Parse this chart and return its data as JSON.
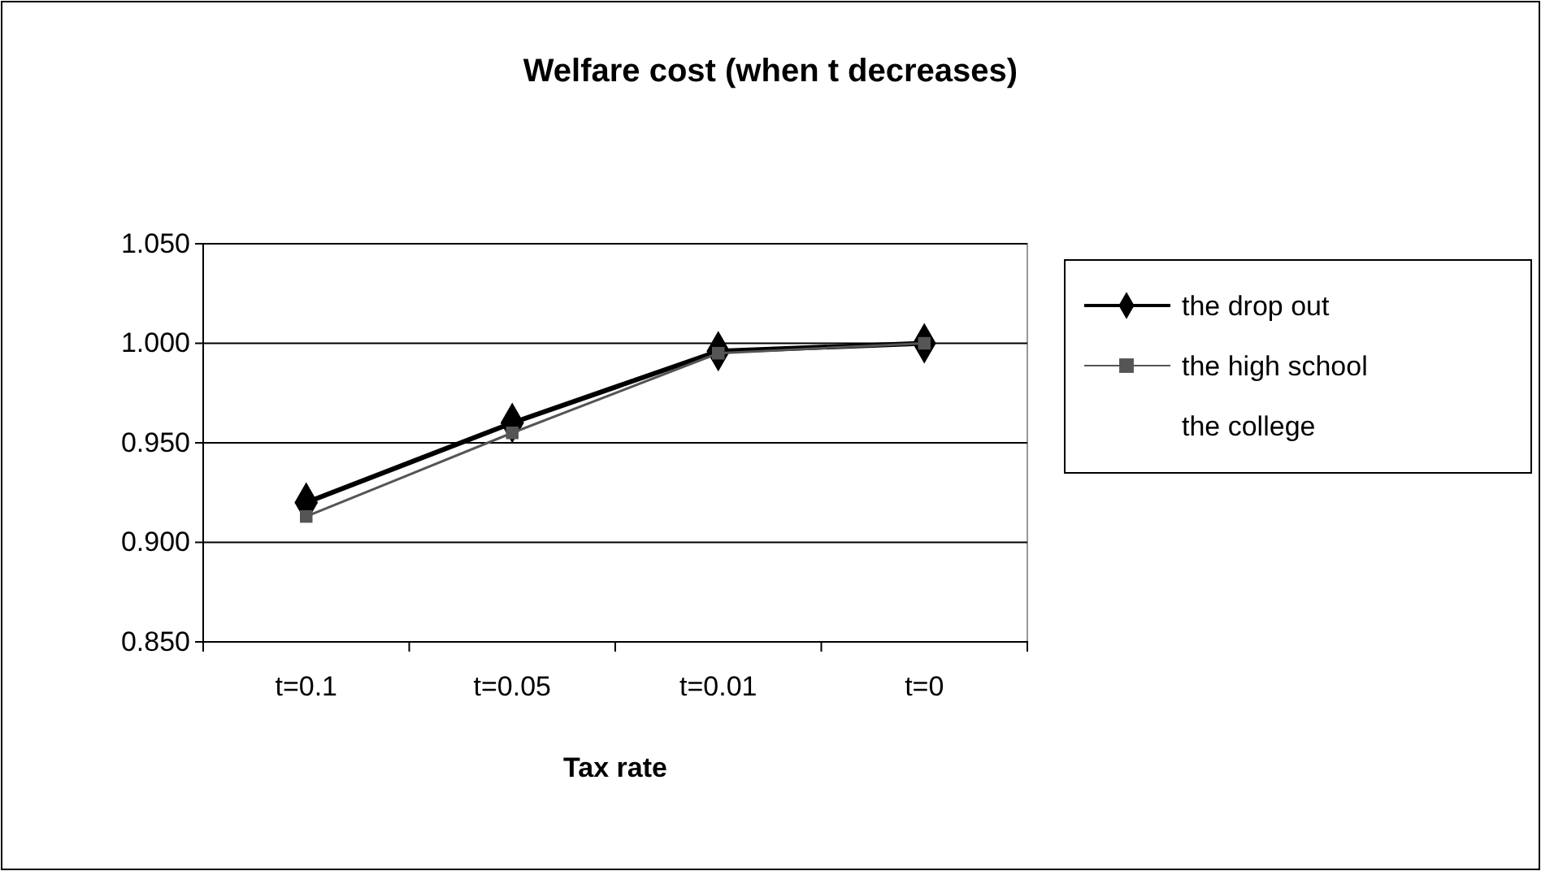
{
  "chart_data": {
    "type": "line",
    "title": "Welfare cost (when t decreases)",
    "xlabel": "Tax rate",
    "categories": [
      "t=0.1",
      "t=0.05",
      "t=0.01",
      "t=0"
    ],
    "series": [
      {
        "name": "the drop out",
        "color": "#000000",
        "values": [
          0.92,
          0.96,
          0.996,
          1.0
        ],
        "marker": "diamond"
      },
      {
        "name": "the high school",
        "color": "#555555",
        "values": [
          0.913,
          0.955,
          0.995,
          1.0
        ],
        "marker": "square"
      },
      {
        "name": "the college",
        "values": [
          null,
          null,
          null,
          null
        ],
        "marker": "none"
      }
    ],
    "ylim": [
      0.85,
      1.05
    ],
    "yticks": [
      {
        "value": 0.85,
        "label": "0.850"
      },
      {
        "value": 0.9,
        "label": "0.900"
      },
      {
        "value": 0.95,
        "label": "0.950"
      },
      {
        "value": 1.0,
        "label": "1.000"
      },
      {
        "value": 1.05,
        "label": "1.050"
      }
    ],
    "grid": "y",
    "legend": "right",
    "line_style": "solid"
  }
}
